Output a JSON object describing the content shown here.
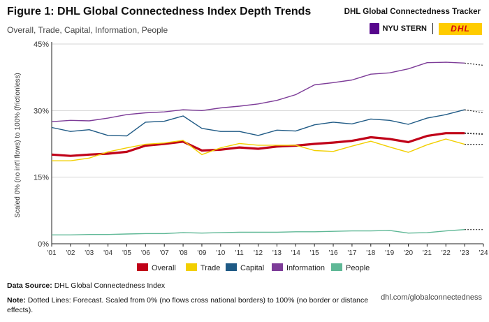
{
  "header": {
    "title": "Figure 1: DHL Global Connectedness Index Depth Trends",
    "subtitle": "Overall, Trade, Capital, Information, People",
    "tracker": "DHL Global Connectedness Tracker",
    "nyu_label": "NYU STERN",
    "dhl_logo": "DHL"
  },
  "footer": {
    "source_label": "Data Source:",
    "source_text": " DHL Global Connectedness Index",
    "note_label": "Note:",
    "note_text": " Dotted Lines: Forecast. Scaled from 0% (no flows cross national borders) to 100% (no border or distance effects).",
    "url": "dhl.com/globalconnectedness"
  },
  "chart_data": {
    "type": "line",
    "title": "Figure 1: DHL Global Connectedness Index Depth Trends",
    "ylabel": "Scaled 0% (no int'l flows) to 100% (frictionless)",
    "xlabel": "",
    "ylim": [
      0,
      45
    ],
    "yticks": [
      "0%",
      "15%",
      "30%",
      "45%"
    ],
    "ytick_values": [
      0,
      15,
      30,
      45
    ],
    "x": [
      "'01",
      "'02",
      "'03",
      "'04",
      "'05",
      "'06",
      "'07",
      "'08",
      "'09",
      "'10",
      "'11",
      "'12",
      "'13",
      "'14",
      "'15",
      "'16",
      "'17",
      "'18",
      "'19",
      "'20",
      "'21",
      "'22",
      "'23",
      "'24"
    ],
    "forecast_from_index": 22,
    "legend_position": "bottom",
    "series": [
      {
        "name": "Overall",
        "color": "#c00018",
        "values": [
          20.1,
          19.8,
          20.1,
          20.3,
          20.7,
          22.1,
          22.5,
          23.0,
          21.0,
          21.2,
          21.7,
          21.4,
          21.9,
          22.1,
          22.5,
          22.8,
          23.2,
          24.0,
          23.6,
          22.9,
          24.3,
          24.9,
          24.9,
          24.7
        ]
      },
      {
        "name": "Trade",
        "color": "#f2cf00",
        "values": [
          18.7,
          18.7,
          19.3,
          20.7,
          21.6,
          22.4,
          22.7,
          23.3,
          20.1,
          21.6,
          22.6,
          22.2,
          22.2,
          22.2,
          21.0,
          20.8,
          22.0,
          23.1,
          21.8,
          20.6,
          22.3,
          23.6,
          22.4,
          22.4
        ]
      },
      {
        "name": "Capital",
        "color": "#1f5a85",
        "values": [
          26.2,
          25.3,
          25.7,
          24.4,
          24.3,
          27.4,
          27.6,
          28.8,
          26.0,
          25.3,
          25.3,
          24.4,
          25.6,
          25.4,
          26.8,
          27.4,
          27.0,
          28.1,
          27.8,
          26.9,
          28.3,
          29.1,
          30.2,
          29.5
        ]
      },
      {
        "name": "Information",
        "color": "#7d3c98",
        "values": [
          27.5,
          27.8,
          27.7,
          28.3,
          29.1,
          29.5,
          29.7,
          30.2,
          30.0,
          30.6,
          31.0,
          31.5,
          32.3,
          33.6,
          35.8,
          36.3,
          36.9,
          38.2,
          38.5,
          39.4,
          40.8,
          40.9,
          40.7,
          40.2
        ]
      },
      {
        "name": "People",
        "color": "#5fb896",
        "values": [
          2.0,
          2.0,
          2.1,
          2.1,
          2.2,
          2.3,
          2.3,
          2.5,
          2.4,
          2.5,
          2.6,
          2.6,
          2.6,
          2.7,
          2.7,
          2.8,
          2.9,
          2.9,
          3.0,
          2.4,
          2.5,
          2.9,
          3.2,
          3.2
        ]
      }
    ]
  }
}
